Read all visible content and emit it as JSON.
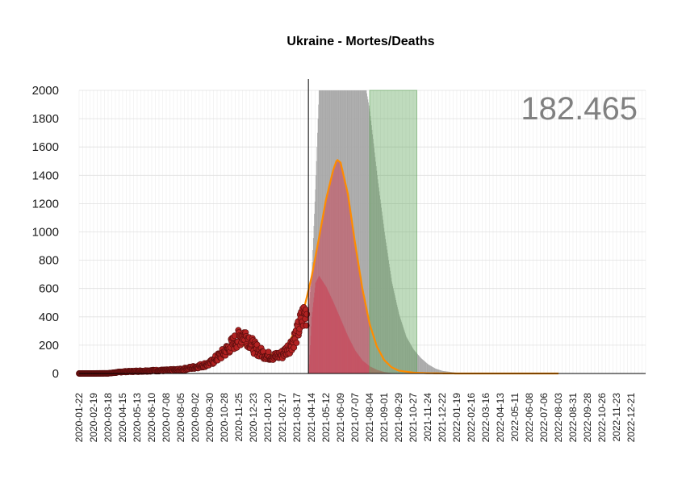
{
  "chart_data": {
    "type": "scatter",
    "title": "Ukraine - Mortes/Deaths",
    "xlabel": "",
    "ylabel": "",
    "ylim": [
      0,
      2000
    ],
    "xlim": [
      "2020-01-22",
      "2023-01-18"
    ],
    "y_ticks": [
      0,
      200,
      400,
      600,
      800,
      1000,
      1200,
      1400,
      1600,
      1800,
      2000
    ],
    "x_ticks": [
      "2020-01-22",
      "2020-02-19",
      "2020-03-18",
      "2020-04-15",
      "2020-05-13",
      "2020-06-10",
      "2020-07-08",
      "2020-08-05",
      "2020-09-02",
      "2020-09-30",
      "2020-10-28",
      "2020-11-25",
      "2020-12-23",
      "2021-01-20",
      "2021-02-17",
      "2021-03-17",
      "2021-04-14",
      "2021-05-12",
      "2021-06-09",
      "2021-07-07",
      "2021-08-04",
      "2021-09-01",
      "2021-09-29",
      "2021-10-27",
      "2021-11-24",
      "2021-12-22",
      "2022-01-19",
      "2022-02-16",
      "2022-03-16",
      "2022-04-13",
      "2022-05-11",
      "2022-06-08",
      "2022-07-06",
      "2022-08-03",
      "2022-08-31",
      "2022-09-28",
      "2022-10-26",
      "2022-11-23",
      "2022-12-21"
    ],
    "total_label": "182.465",
    "today_marker": "2021-04-08",
    "grid": true,
    "observed_daily_deaths": [
      [
        "2020-01-22",
        0
      ],
      [
        "2020-03-18",
        1
      ],
      [
        "2020-04-15",
        12
      ],
      [
        "2020-05-13",
        16
      ],
      [
        "2020-06-10",
        20
      ],
      [
        "2020-07-08",
        22
      ],
      [
        "2020-08-05",
        27
      ],
      [
        "2020-09-02",
        45
      ],
      [
        "2020-09-30",
        70
      ],
      [
        "2020-10-14",
        110
      ],
      [
        "2020-10-28",
        150
      ],
      [
        "2020-11-10",
        200
      ],
      [
        "2020-11-25",
        250
      ],
      [
        "2020-12-05",
        280
      ],
      [
        "2020-12-15",
        240
      ],
      [
        "2020-12-23",
        190
      ],
      [
        "2021-01-05",
        150
      ],
      [
        "2021-01-20",
        125
      ],
      [
        "2021-02-05",
        120
      ],
      [
        "2021-02-17",
        135
      ],
      [
        "2021-03-03",
        190
      ],
      [
        "2021-03-17",
        280
      ],
      [
        "2021-03-28",
        400
      ],
      [
        "2021-04-05",
        430
      ]
    ],
    "series": [
      {
        "name": "",
        "kind": "fitted-curve",
        "color": "#ff8c00",
        "points": [
          [
            "2020-01-22",
            2
          ],
          [
            "2020-04-15",
            8
          ],
          [
            "2020-06-10",
            15
          ],
          [
            "2020-08-05",
            30
          ],
          [
            "2020-09-02",
            50
          ],
          [
            "2020-09-30",
            80
          ],
          [
            "2020-10-28",
            130
          ],
          [
            "2020-11-25",
            195
          ],
          [
            "2020-12-10",
            200
          ],
          [
            "2020-12-23",
            180
          ],
          [
            "2021-01-10",
            140
          ],
          [
            "2021-01-20",
            130
          ],
          [
            "2021-02-05",
            140
          ],
          [
            "2021-02-17",
            175
          ],
          [
            "2021-03-03",
            230
          ],
          [
            "2021-03-17",
            330
          ],
          [
            "2021-04-01",
            480
          ],
          [
            "2021-04-14",
            680
          ],
          [
            "2021-04-28",
            950
          ],
          [
            "2021-05-12",
            1230
          ],
          [
            "2021-05-26",
            1440
          ],
          [
            "2021-06-02",
            1510
          ],
          [
            "2021-06-09",
            1490
          ],
          [
            "2021-06-23",
            1270
          ],
          [
            "2021-07-07",
            920
          ],
          [
            "2021-07-21",
            600
          ],
          [
            "2021-08-04",
            350
          ],
          [
            "2021-08-18",
            190
          ],
          [
            "2021-09-01",
            95
          ],
          [
            "2021-09-15",
            45
          ],
          [
            "2021-09-29",
            20
          ],
          [
            "2021-10-27",
            6
          ],
          [
            "2021-11-24",
            2
          ],
          [
            "2022-01-19",
            0
          ],
          [
            "2022-08-03",
            0
          ]
        ]
      },
      {
        "name": "",
        "kind": "upper-band",
        "color": "#a9a9a9",
        "points": [
          [
            "2021-04-08",
            450
          ],
          [
            "2021-04-14",
            700
          ],
          [
            "2021-04-21",
            1300
          ],
          [
            "2021-04-28",
            2000
          ],
          [
            "2021-07-28",
            2000
          ],
          [
            "2021-08-04",
            1850
          ],
          [
            "2021-08-18",
            1400
          ],
          [
            "2021-09-01",
            1000
          ],
          [
            "2021-09-15",
            650
          ],
          [
            "2021-09-29",
            420
          ],
          [
            "2021-10-13",
            260
          ],
          [
            "2021-10-27",
            170
          ],
          [
            "2021-11-10",
            110
          ],
          [
            "2021-11-24",
            65
          ],
          [
            "2021-12-08",
            35
          ],
          [
            "2021-12-22",
            18
          ],
          [
            "2022-01-19",
            5
          ],
          [
            "2022-02-16",
            1
          ],
          [
            "2022-03-16",
            0
          ]
        ]
      },
      {
        "name": "",
        "kind": "lower-band",
        "color": "#c8475a",
        "points": [
          [
            "2021-04-08",
            0
          ],
          [
            "2021-04-14",
            400
          ],
          [
            "2021-04-21",
            640
          ],
          [
            "2021-04-28",
            690
          ],
          [
            "2021-05-12",
            610
          ],
          [
            "2021-05-26",
            500
          ],
          [
            "2021-06-09",
            380
          ],
          [
            "2021-06-23",
            260
          ],
          [
            "2021-07-07",
            160
          ],
          [
            "2021-07-21",
            90
          ],
          [
            "2021-08-04",
            50
          ],
          [
            "2021-08-18",
            25
          ],
          [
            "2021-09-01",
            10
          ],
          [
            "2021-09-15",
            3
          ],
          [
            "2021-09-29",
            0
          ]
        ]
      }
    ],
    "shaded_regions": [
      {
        "name": "",
        "from": "2021-04-08",
        "to": "2021-08-04",
        "color": "#c8475a",
        "opacity": 0.55,
        "under_curve": true
      },
      {
        "name": "",
        "from": "2021-08-04",
        "to": "2021-11-03",
        "color": "#5fa55a",
        "opacity": 0.4,
        "under_curve": false
      }
    ]
  }
}
